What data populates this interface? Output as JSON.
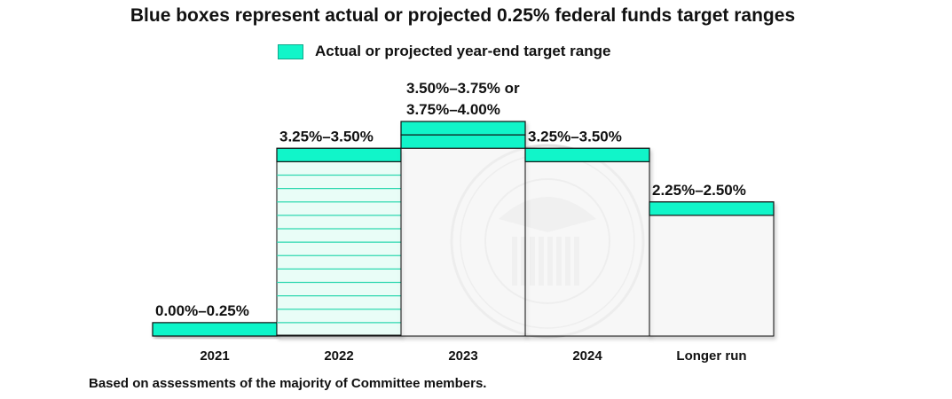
{
  "title": "Blue boxes represent actual or projected 0.25% federal funds target ranges",
  "legend": {
    "label": "Actual or projected year-end target range",
    "color": "#11f5c9"
  },
  "footnote": "Based on assessments of the majority of Committee members.",
  "watermark": "seal-of-the-federal-reserve",
  "colors": {
    "fill": "#11f5c9",
    "stroke": "#111111",
    "pale": "#e9fdf7",
    "hatch": "#2ed8b0"
  },
  "chart_data": {
    "type": "bar",
    "categories": [
      "2021",
      "2022",
      "2023",
      "2024",
      "Longer run"
    ],
    "values": [
      0.25,
      3.5,
      4.0,
      3.5,
      2.5
    ],
    "ranges": [
      [
        "0.00%",
        "0.25%"
      ],
      [
        "3.25%",
        "3.50%"
      ],
      [
        "3.50%",
        "4.00%"
      ],
      [
        "3.25%",
        "3.50%"
      ],
      [
        "2.25%",
        "2.50%"
      ]
    ],
    "labels": [
      [
        "0.00%–0.25%"
      ],
      [
        "3.25%–3.50%"
      ],
      [
        "3.50%–3.75% or",
        "3.75%–4.00%"
      ],
      [
        "3.25%–3.50%"
      ],
      [
        "2.25%–2.50%"
      ]
    ],
    "range_box_height": 0.25,
    "ylim": [
      0,
      4.0
    ]
  }
}
